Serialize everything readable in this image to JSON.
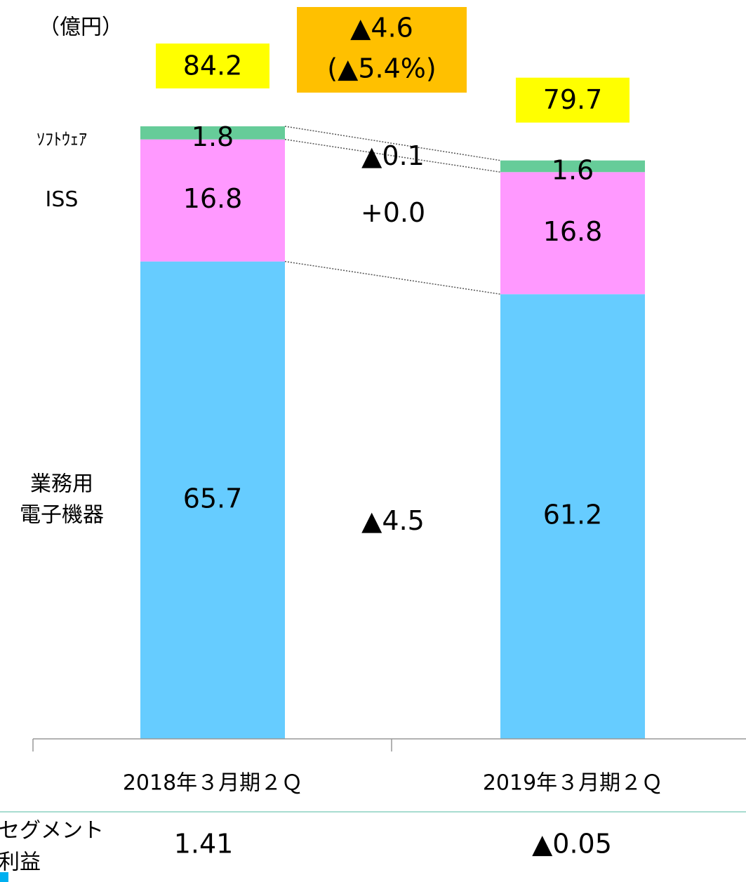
{
  "chart_data": {
    "type": "stacked_bar",
    "unit": "（億円）",
    "categories": [
      "2018年３月期２Ｑ",
      "2019年３月期２Ｑ"
    ],
    "series": [
      {
        "name": "業務用\n電子機器",
        "color": "#66ccff",
        "values": [
          65.7,
          61.2
        ]
      },
      {
        "name": "ISS",
        "color": "#ff99ff",
        "values": [
          16.8,
          16.8
        ]
      },
      {
        "name": "ｿﾌﾄｳｪｱ",
        "color": "#66cc99",
        "values": [
          1.8,
          1.6
        ]
      }
    ],
    "totals": [
      84.2,
      79.7
    ],
    "total_color": "#ffff00",
    "change_total": [
      "▲4.6",
      "(▲5.4%)"
    ],
    "change_total_color": "#ffc000",
    "series_changes": [
      "▲4.5",
      "+0.0",
      "▲0.1"
    ],
    "ylim": [
      0,
      90
    ],
    "segment_profit": {
      "label": [
        "セグメント",
        "利益"
      ],
      "values": [
        "1.41",
        "▲0.05"
      ]
    }
  }
}
